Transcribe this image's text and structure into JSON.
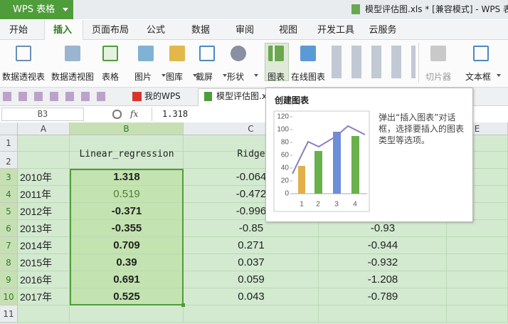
{
  "title_bar": {
    "app": "WPS 表格",
    "document": "模型评估图.xls * [兼容模式] - WPS 表"
  },
  "tabs": [
    "开始",
    "插入",
    "页面布局",
    "公式",
    "数据",
    "审阅",
    "视图",
    "开发工具",
    "云服务"
  ],
  "ribbon": [
    "数据透视表",
    "数据透视图",
    "表格",
    "图片",
    "图库",
    "截屏",
    "形状",
    "图表",
    "在线图表",
    "切片器",
    "文本框"
  ],
  "doc_tabs": [
    "我的WPS",
    "模型评估图.x"
  ],
  "formula_bar": {
    "cell": "B3",
    "fx": "fx",
    "value": "1.318"
  },
  "columns": [
    "A",
    "B",
    "C",
    "D",
    "E"
  ],
  "row_numbers": [
    1,
    2,
    3,
    4,
    5,
    6,
    7,
    8,
    9,
    10,
    11
  ],
  "table": {
    "header_b": "Linear_regression",
    "header_c": "Ridge",
    "rows": [
      {
        "year": "2010年",
        "b": "1.318",
        "c": "-0.064"
      },
      {
        "year": "2011年",
        "b": "0.519",
        "c": "-0.472"
      },
      {
        "year": "2012年",
        "b": "-0.371",
        "c": "-0.996"
      },
      {
        "year": "2013年",
        "b": "-0.355",
        "c": "-0.85",
        "d": "-0.93"
      },
      {
        "year": "2014年",
        "b": "0.709",
        "c": "0.271",
        "d": "-0.944"
      },
      {
        "year": "2015年",
        "b": "0.39",
        "c": "0.037",
        "d": "-0.932"
      },
      {
        "year": "2016年",
        "b": "0.691",
        "c": "0.059",
        "d": "-1.208"
      },
      {
        "year": "2017年",
        "b": "0.525",
        "c": "0.043",
        "d": "-0.789"
      }
    ]
  },
  "tooltip": {
    "title": "创建图表",
    "description": "弹出“插入图表”对话框，选择要插入的图表类型等选项。",
    "yticks": [
      0,
      20,
      40,
      60,
      80,
      100,
      120
    ],
    "xticks": [
      1,
      2,
      3,
      4
    ]
  }
}
